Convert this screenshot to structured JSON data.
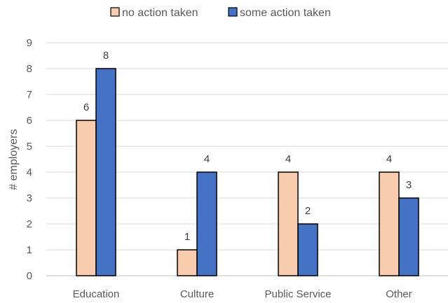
{
  "chart_data": {
    "type": "bar",
    "title": "",
    "xlabel": "",
    "ylabel": "# employers",
    "categories": [
      "Education",
      "Culture",
      "Public Service",
      "Other"
    ],
    "series": [
      {
        "name": "no action taken",
        "values": [
          6,
          1,
          4,
          4
        ],
        "color": "#F8CBAD"
      },
      {
        "name": "some action taken",
        "values": [
          8,
          4,
          2,
          3
        ],
        "color": "#4472C4"
      }
    ],
    "ylim": [
      0,
      9
    ],
    "yticks": [
      0,
      1,
      2,
      3,
      4,
      5,
      6,
      7,
      8,
      9
    ],
    "grid": true,
    "legend_position": "top",
    "data_labels": true
  }
}
